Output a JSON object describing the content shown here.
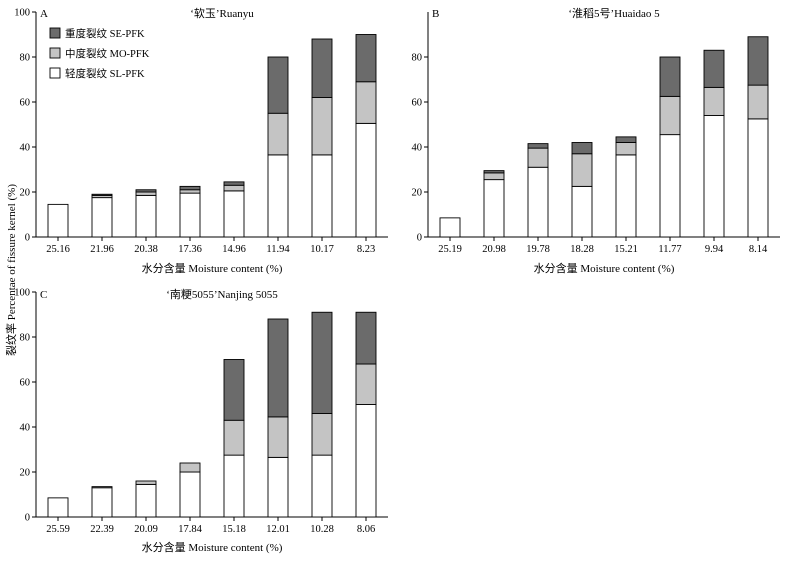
{
  "ylabel": "裂纹率 Percentae of fissure kernel (%)",
  "legend": [
    {
      "name": "重度裂纹 SE-PFK",
      "color": "#6b6b6b"
    },
    {
      "name": "中度裂纹 MO-PFK",
      "color": "#c4c4c4"
    },
    {
      "name": "轻度裂纹 SL-PFK",
      "color": "#ffffff"
    }
  ],
  "chart_data": [
    {
      "type": "bar",
      "stacked": true,
      "panel": "A",
      "title": "‘软玉’Ruanyu",
      "xlabel": "水分含量 Moisture content (%)",
      "categories": [
        "25.16",
        "21.96",
        "20.38",
        "17.36",
        "14.96",
        "11.94",
        "10.17",
        "8.23"
      ],
      "ylim": [
        0,
        100
      ],
      "yticks": [
        0,
        20,
        40,
        60,
        80,
        100
      ],
      "series": [
        {
          "name": "轻度裂纹 SL-PFK",
          "values": [
            14.5,
            17.5,
            18.5,
            19.5,
            20.5,
            36.5,
            36.5,
            50.5
          ]
        },
        {
          "name": "中度裂纹 MO-PFK",
          "values": [
            0,
            1.0,
            1.5,
            1.5,
            2.5,
            18.5,
            25.5,
            18.5
          ]
        },
        {
          "name": "重度裂纹 SE-PFK",
          "values": [
            0,
            0.5,
            1.0,
            1.5,
            1.5,
            25.0,
            26.0,
            21.0
          ]
        }
      ]
    },
    {
      "type": "bar",
      "stacked": true,
      "panel": "B",
      "title": "‘淮稻5号’Huaidao 5",
      "xlabel": "水分含量 Moisture content (%)",
      "categories": [
        "25.19",
        "20.98",
        "19.78",
        "18.28",
        "15.21",
        "11.77",
        "9.94",
        "8.14"
      ],
      "ylim": [
        0,
        100
      ],
      "yticks": [
        0,
        20,
        40,
        60,
        80
      ],
      "series": [
        {
          "name": "轻度裂纹 SL-PFK",
          "values": [
            8.5,
            25.5,
            31.0,
            22.5,
            36.5,
            45.5,
            54.0,
            52.5
          ]
        },
        {
          "name": "中度裂纹 MO-PFK",
          "values": [
            0,
            3.0,
            8.5,
            14.5,
            5.5,
            17.0,
            12.5,
            15.0
          ]
        },
        {
          "name": "重度裂纹 SE-PFK",
          "values": [
            0,
            1.0,
            2.0,
            5.0,
            2.5,
            17.5,
            16.5,
            21.5
          ]
        }
      ]
    },
    {
      "type": "bar",
      "stacked": true,
      "panel": "C",
      "title": "‘南粳5055’Nanjing 5055",
      "xlabel": "水分含量 Moisture content (%)",
      "categories": [
        "25.59",
        "22.39",
        "20.09",
        "17.84",
        "15.18",
        "12.01",
        "10.28",
        "8.06"
      ],
      "ylim": [
        0,
        100
      ],
      "yticks": [
        0,
        20,
        40,
        60,
        80,
        100
      ],
      "series": [
        {
          "name": "轻度裂纹 SL-PFK",
          "values": [
            8.5,
            13.0,
            14.5,
            20.0,
            27.5,
            26.5,
            27.5,
            50.0
          ]
        },
        {
          "name": "中度裂纹 MO-PFK",
          "values": [
            0,
            0.5,
            1.5,
            4.0,
            15.5,
            18.0,
            18.5,
            18.0
          ]
        },
        {
          "name": "重度裂纹 SE-PFK",
          "values": [
            0,
            0,
            0,
            0,
            27.0,
            43.5,
            45.0,
            23.0
          ]
        }
      ]
    }
  ]
}
